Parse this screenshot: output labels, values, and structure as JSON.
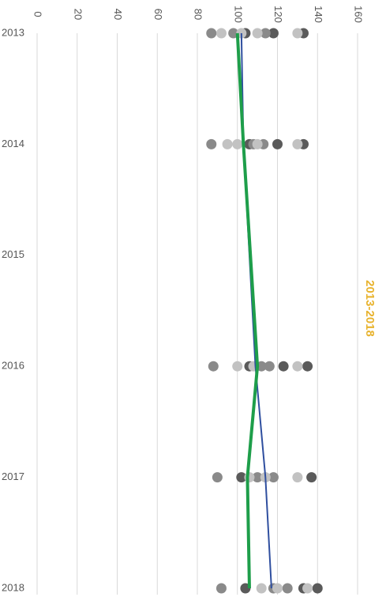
{
  "chart_data": {
    "type": "scatter",
    "title": "2013-2018",
    "title_color": "#e8b32e",
    "xlim": [
      2013,
      2018
    ],
    "xticks": [
      2013,
      2014,
      2015,
      2016,
      2017,
      2018
    ],
    "ylim": [
      0,
      160
    ],
    "yticks": [
      0,
      20,
      40,
      60,
      80,
      100,
      120,
      140,
      160
    ],
    "grid": true,
    "series": [
      {
        "type": "scatter",
        "color": "#5a5a5a",
        "x": [
          2013,
          2013,
          2013,
          2014,
          2014,
          2014,
          2016,
          2016,
          2016,
          2017,
          2017,
          2018,
          2018,
          2018
        ],
        "values": [
          104,
          118,
          133,
          106,
          120,
          133,
          106,
          123,
          135,
          102,
          137,
          104,
          133,
          140
        ]
      },
      {
        "type": "scatter",
        "color": "#8a8a8a",
        "x": [
          2013,
          2013,
          2013,
          2014,
          2014,
          2014,
          2016,
          2016,
          2016,
          2017,
          2017,
          2017,
          2018,
          2018,
          2018
        ],
        "values": [
          87,
          98,
          114,
          87,
          108,
          113,
          88,
          112,
          116,
          90,
          110,
          118,
          92,
          118,
          125
        ]
      },
      {
        "type": "scatter",
        "color": "#c2c2c2",
        "x": [
          2013,
          2013,
          2013,
          2013,
          2014,
          2014,
          2014,
          2014,
          2016,
          2016,
          2016,
          2017,
          2017,
          2017,
          2018,
          2018,
          2018
        ],
        "values": [
          92,
          102,
          110,
          130,
          95,
          100,
          110,
          130,
          100,
          108,
          130,
          106,
          114,
          130,
          112,
          120,
          135
        ]
      },
      {
        "type": "line",
        "color": "#2f4f9f",
        "width": 2,
        "x": [
          2013,
          2014,
          2016,
          2017,
          2018
        ],
        "values": [
          102,
          103,
          109,
          114,
          117
        ]
      },
      {
        "type": "line",
        "color": "#1e9e4a",
        "width": 4,
        "x": [
          2013,
          2014,
          2016,
          2017,
          2018
        ],
        "values": [
          100,
          103,
          110,
          105,
          106
        ]
      }
    ]
  }
}
